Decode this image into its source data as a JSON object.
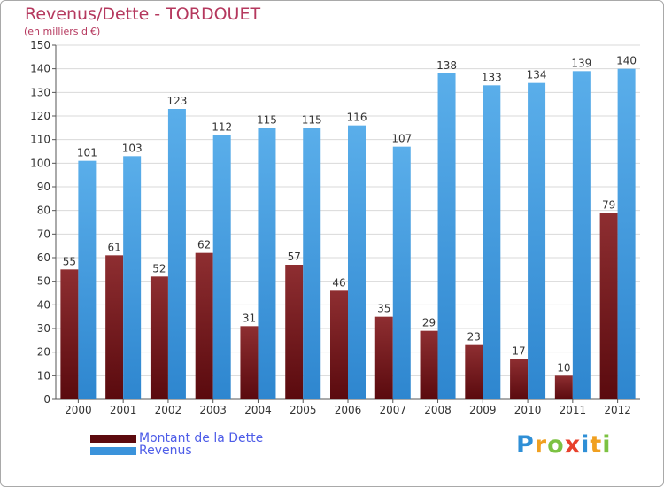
{
  "chart_data": {
    "type": "bar",
    "title": "Revenus/Dette - TORDOUET",
    "subtitle": "(en milliers d'€)",
    "categories": [
      "2000",
      "2001",
      "2002",
      "2003",
      "2004",
      "2005",
      "2006",
      "2007",
      "2008",
      "2009",
      "2010",
      "2011",
      "2012"
    ],
    "series": [
      {
        "name": "Montant de la Dette",
        "color": "#7a1b1f",
        "values": [
          55,
          61,
          52,
          62,
          31,
          57,
          46,
          35,
          29,
          23,
          17,
          10,
          79
        ]
      },
      {
        "name": "Revenus",
        "color": "#4a9fe2",
        "values": [
          101,
          103,
          123,
          112,
          115,
          115,
          116,
          107,
          138,
          133,
          134,
          139,
          140
        ]
      }
    ],
    "ylim": [
      0,
      150
    ],
    "yticks": [
      0,
      10,
      20,
      30,
      40,
      50,
      60,
      70,
      80,
      90,
      100,
      110,
      120,
      130,
      140,
      150
    ],
    "grid": true,
    "legend_position": "bottom-left",
    "data_labels": true
  },
  "logo": {
    "letters": [
      {
        "ch": "P",
        "color": "#2f8fd6"
      },
      {
        "ch": "r",
        "color": "#f0a020"
      },
      {
        "ch": "o",
        "color": "#7cc242"
      },
      {
        "ch": "x",
        "color": "#e8412c"
      },
      {
        "ch": "i",
        "color": "#2f8fd6"
      },
      {
        "ch": "t",
        "color": "#f0a020"
      },
      {
        "ch": "i",
        "color": "#7cc242"
      }
    ]
  }
}
